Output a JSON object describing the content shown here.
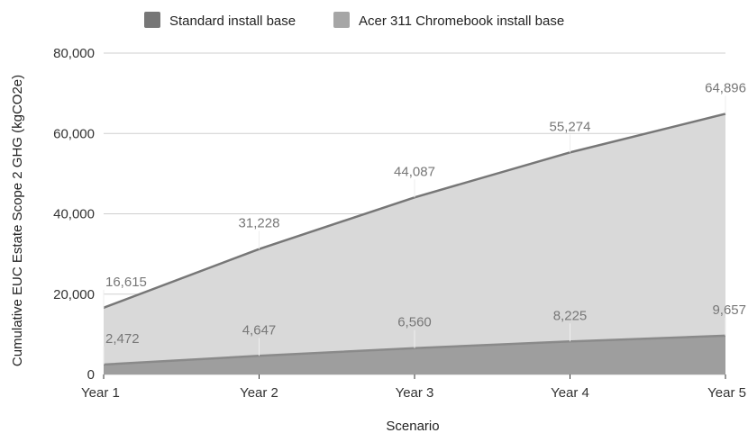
{
  "chart_data": {
    "type": "area",
    "categories": [
      "Year 1",
      "Year 2",
      "Year 3",
      "Year 4",
      "Year 5"
    ],
    "series": [
      {
        "name": "Standard install base",
        "values": [
          2472,
          4647,
          6560,
          8225,
          9657
        ],
        "labels": [
          "2,472",
          "4,647",
          "6,560",
          "8,225",
          "9,657"
        ],
        "fill": "#9e9e9e",
        "line": "#8a8a8a"
      },
      {
        "name": "Acer 311 Chromebook install base",
        "values": [
          16615,
          31228,
          44087,
          55274,
          64896
        ],
        "labels": [
          "16,615",
          "31,228",
          "44,087",
          "55,274",
          "64,896"
        ],
        "fill": "#d9d9d9",
        "line": "#777777"
      }
    ],
    "xlabel": "Scenario",
    "ylabel": "Cumulative EUC Estate Scope 2 GHG (kgCO2e)",
    "ylim": [
      0,
      80000
    ],
    "yticks": [
      0,
      20000,
      40000,
      60000,
      80000
    ],
    "ytick_labels": [
      "0",
      "20,000",
      "40,000",
      "60,000",
      "80,000"
    ],
    "grid": true,
    "legend_position": "top"
  }
}
